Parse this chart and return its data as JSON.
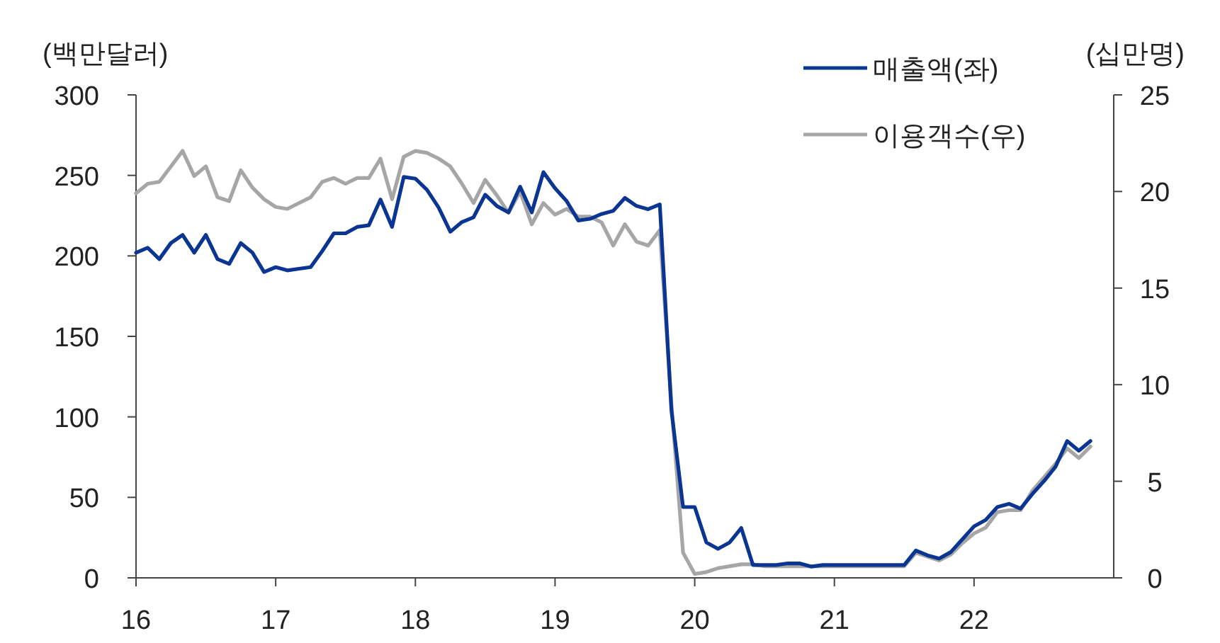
{
  "chart_data": {
    "type": "line",
    "ylabel": "(백만달러)",
    "y2label": "(십만명)",
    "x": [
      "2016-01",
      "2016-02",
      "2016-03",
      "2016-04",
      "2016-05",
      "2016-06",
      "2016-07",
      "2016-08",
      "2016-09",
      "2016-10",
      "2016-11",
      "2016-12",
      "2017-01",
      "2017-02",
      "2017-03",
      "2017-04",
      "2017-05",
      "2017-06",
      "2017-07",
      "2017-08",
      "2017-09",
      "2017-10",
      "2017-11",
      "2017-12",
      "2018-01",
      "2018-02",
      "2018-03",
      "2018-04",
      "2018-05",
      "2018-06",
      "2018-07",
      "2018-08",
      "2018-09",
      "2018-10",
      "2018-11",
      "2018-12",
      "2019-01",
      "2019-02",
      "2019-03",
      "2019-04",
      "2019-05",
      "2019-06",
      "2019-07",
      "2019-08",
      "2019-09",
      "2019-10",
      "2019-11",
      "2019-12",
      "2020-01",
      "2020-02",
      "2020-03",
      "2020-04",
      "2020-05",
      "2020-06",
      "2020-07",
      "2020-08",
      "2020-09",
      "2020-10",
      "2020-11",
      "2020-12",
      "2021-01",
      "2021-02",
      "2021-03",
      "2021-04",
      "2021-05",
      "2021-06",
      "2021-07",
      "2021-08",
      "2021-09",
      "2021-10",
      "2021-11",
      "2021-12",
      "2022-01",
      "2022-02",
      "2022-03",
      "2022-04",
      "2022-05",
      "2022-06",
      "2022-07",
      "2022-08",
      "2022-09",
      "2022-10",
      "2022-11"
    ],
    "series": [
      {
        "name": "매출액(좌)",
        "color": "#0a3592",
        "values": [
          202,
          205,
          198,
          208,
          213,
          202,
          213,
          198,
          195,
          208,
          202,
          190,
          193,
          191,
          192,
          193,
          203,
          214,
          214,
          218,
          219,
          235,
          218,
          249,
          248,
          241,
          230,
          215,
          221,
          224,
          238,
          231,
          227,
          243,
          227,
          252,
          242,
          234,
          222,
          223,
          226,
          228,
          236,
          231,
          229,
          232,
          104,
          44,
          44,
          22,
          18,
          22,
          31,
          8,
          8,
          8,
          9,
          9,
          7,
          8,
          8,
          8,
          8,
          8,
          8,
          8,
          8,
          17,
          14,
          12,
          16,
          24,
          32,
          36,
          44,
          46,
          43,
          52,
          60,
          69,
          85,
          79,
          85
        ]
      },
      {
        "name": "이용객수(우)",
        "color": "#a6a6a6",
        "axis": "y2",
        "values": [
          19.9,
          20.4,
          20.5,
          21.3,
          22.1,
          20.8,
          21.3,
          19.7,
          19.5,
          21.1,
          20.2,
          19.6,
          19.2,
          19.1,
          19.4,
          19.7,
          20.5,
          20.7,
          20.4,
          20.7,
          20.7,
          21.7,
          19.6,
          21.8,
          22.1,
          22.0,
          21.7,
          21.3,
          20.4,
          19.4,
          20.6,
          19.8,
          18.9,
          20.0,
          18.3,
          19.4,
          18.8,
          19.1,
          18.7,
          18.7,
          18.4,
          17.2,
          18.3,
          17.4,
          17.2,
          18.0,
          9.0,
          1.3,
          0.2,
          0.3,
          0.5,
          0.6,
          0.7,
          0.7,
          0.6,
          0.6,
          0.6,
          0.6,
          0.6,
          0.6,
          0.6,
          0.6,
          0.6,
          0.6,
          0.6,
          0.6,
          0.6,
          1.3,
          1.1,
          0.9,
          1.2,
          1.8,
          2.3,
          2.6,
          3.4,
          3.5,
          3.5,
          4.5,
          5.2,
          5.9,
          6.7,
          6.2,
          6.8
        ]
      }
    ],
    "xlim": [
      "2016-01",
      "2023-01"
    ],
    "xticks": [
      {
        "value": "2016-01",
        "label": "16"
      },
      {
        "value": "2017-01",
        "label": "17"
      },
      {
        "value": "2018-01",
        "label": "18"
      },
      {
        "value": "2019-01",
        "label": "19"
      },
      {
        "value": "2020-01",
        "label": "20"
      },
      {
        "value": "2021-01",
        "label": "21"
      },
      {
        "value": "2022-01",
        "label": "22"
      }
    ],
    "ylim": [
      0,
      300
    ],
    "yticks": [
      0,
      50,
      100,
      150,
      200,
      250,
      300
    ],
    "y2lim": [
      0,
      25
    ],
    "y2ticks": [
      0,
      5,
      10,
      15,
      20,
      25
    ],
    "legend": "top right",
    "grid": false
  }
}
